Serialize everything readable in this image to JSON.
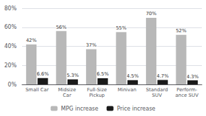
{
  "chart_data": {
    "type": "bar",
    "categories": [
      "Small Car",
      "Midsize\nCar",
      "Full-Size\nPickup",
      "Minivan",
      "Standard\nSUV",
      "Perform-\nance SUV"
    ],
    "series": [
      {
        "name": "MPG increase",
        "color": "#b8b8b8",
        "values": [
          42,
          56,
          37,
          55,
          70,
          52
        ],
        "value_labels": [
          "42%",
          "56%",
          "37%",
          "55%",
          "70%",
          "52%"
        ]
      },
      {
        "name": "Price increase",
        "color": "#1a1a1a",
        "values": [
          6.6,
          5.3,
          6.5,
          4.5,
          4.7,
          4.3
        ],
        "value_labels": [
          "6.6%",
          "5.3%",
          "6.5%",
          "4.5%",
          "4.7%",
          "4.3%"
        ]
      }
    ],
    "ylim": [
      0,
      80
    ],
    "yticks": [
      {
        "value": 0,
        "label": "0%"
      },
      {
        "value": 20,
        "label": "20%"
      },
      {
        "value": 40,
        "label": "40%"
      },
      {
        "value": 60,
        "label": "60%"
      },
      {
        "value": 80,
        "label": "80%"
      }
    ],
    "grid": true,
    "legend": "bottom",
    "data_labels": true
  }
}
